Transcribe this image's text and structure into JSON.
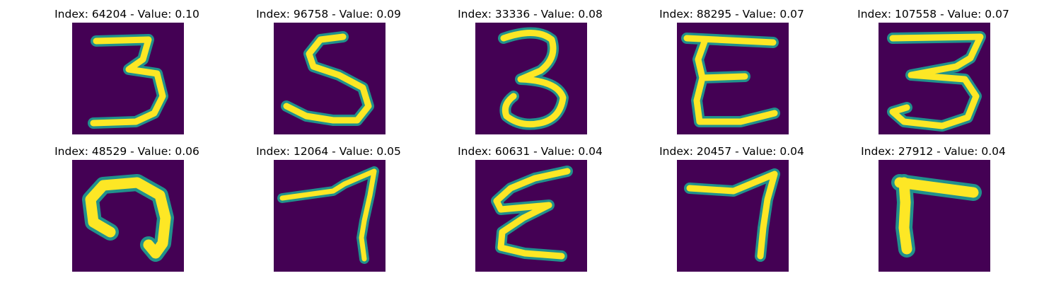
{
  "figure": {
    "colormap": {
      "background": "#440154",
      "edge": "#21918c",
      "mid": "#5ec962",
      "stroke": "#fde725"
    },
    "panels": [
      {
        "title": "Index: 64204 - Value: 0.10",
        "glyph": "3"
      },
      {
        "title": "Index: 96758 - Value: 0.09",
        "glyph": "S"
      },
      {
        "title": "Index: 33336 - Value: 0.08",
        "glyph": "3"
      },
      {
        "title": "Index: 88295 - Value: 0.07",
        "glyph": "E"
      },
      {
        "title": "Index: 107558 - Value: 0.07",
        "glyph": "3"
      },
      {
        "title": "Index: 48529 - Value: 0.06",
        "glyph": "hook"
      },
      {
        "title": "Index: 12064 - Value: 0.05",
        "glyph": "7"
      },
      {
        "title": "Index: 60631 - Value: 0.04",
        "glyph": "E"
      },
      {
        "title": "Index: 20457 - Value: 0.04",
        "glyph": "7"
      },
      {
        "title": "Index: 27912 - Value: 0.04",
        "glyph": "L-flipped"
      }
    ]
  }
}
